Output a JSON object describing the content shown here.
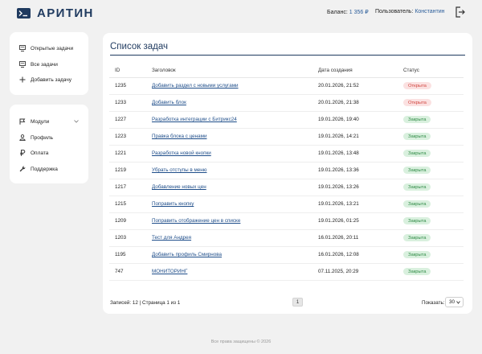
{
  "header": {
    "logo_text": "АРИТИН",
    "balance_label": "Баланс:",
    "balance_value": "1 356 ₽",
    "user_label": "Пользователь:",
    "user_value": "Константин"
  },
  "sidebar": {
    "top_items": [
      {
        "label": "Открытые задачи",
        "icon": "monitor-icon"
      },
      {
        "label": "Все задачи",
        "icon": "monitor-icon"
      },
      {
        "label": "Добавить задачу",
        "icon": "plus-icon"
      }
    ],
    "bottom_items": [
      {
        "label": "Модули",
        "icon": "flag-icon"
      },
      {
        "label": "Профиль",
        "icon": "user-icon"
      },
      {
        "label": "Оплата",
        "icon": "ruble-icon"
      },
      {
        "label": "Поддержка",
        "icon": "wrench-icon"
      }
    ]
  },
  "main": {
    "title": "Список задач",
    "columns": [
      "ID",
      "Заголовок",
      "Дата создания",
      "Статус"
    ],
    "rows": [
      {
        "id": "1235",
        "title": "Добавить раздел с новыми услугами",
        "date": "20.01.2026, 21:52",
        "status": "Открыта",
        "state": "open"
      },
      {
        "id": "1233",
        "title": "Добавить блок",
        "date": "20.01.2026, 21:38",
        "status": "Открыта",
        "state": "open"
      },
      {
        "id": "1227",
        "title": "Разработка интеграции с Битрикс24",
        "date": "19.01.2026, 19:40",
        "status": "Закрыта",
        "state": "closed"
      },
      {
        "id": "1223",
        "title": "Правка блока с ценами",
        "date": "19.01.2026, 14:21",
        "status": "Закрыта",
        "state": "closed"
      },
      {
        "id": "1221",
        "title": "Разработка новой кнопки",
        "date": "19.01.2026, 13:48",
        "status": "Закрыта",
        "state": "closed"
      },
      {
        "id": "1219",
        "title": "Убрать отступы в меню",
        "date": "19.01.2026, 13:36",
        "status": "Закрыта",
        "state": "closed"
      },
      {
        "id": "1217",
        "title": "Добавление новых цен",
        "date": "19.01.2026, 13:26",
        "status": "Закрыта",
        "state": "closed"
      },
      {
        "id": "1215",
        "title": "Поправить кнопку",
        "date": "19.01.2026, 13:21",
        "status": "Закрыта",
        "state": "closed"
      },
      {
        "id": "1209",
        "title": "Поправить отображение цен в списке",
        "date": "19.01.2026, 01:25",
        "status": "Закрыта",
        "state": "closed"
      },
      {
        "id": "1203",
        "title": "Тест для Андрея",
        "date": "16.01.2026, 20:11",
        "status": "Закрыта",
        "state": "closed"
      },
      {
        "id": "1195",
        "title": "Добавить профиль Смирнова",
        "date": "16.01.2026, 12:08",
        "status": "Закрыта",
        "state": "closed"
      },
      {
        "id": "747",
        "title": "МОНИТОРИНГ",
        "date": "07.11.2025, 20:29",
        "status": "Закрыта",
        "state": "closed"
      }
    ],
    "records_text": "Записей: 12 | Страница 1 из 1",
    "page_number": "1",
    "show_label": "Показать:",
    "show_value": "30"
  },
  "footer": {
    "text": "Все права защищены © 2026"
  },
  "colors": {
    "brand": "#1f3a5f",
    "link": "#1f4e8a",
    "open_bg": "#fbe1e1",
    "open_fg": "#d0443e",
    "closed_bg": "#d9f0de",
    "closed_fg": "#2f8a45"
  }
}
